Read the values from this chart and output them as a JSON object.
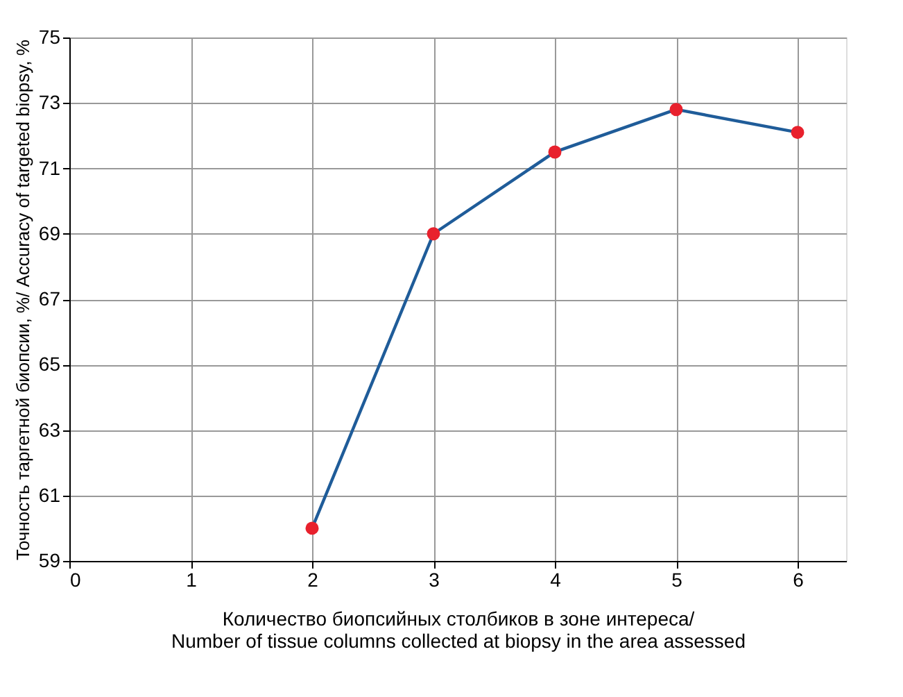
{
  "chart_data": {
    "type": "line",
    "xlabel": "Количество биопсийных столбиков в зоне интереса/ Number of tissue columns collected at biopsy in the area assessed",
    "ylabel": "Точность таргетной биопсии, %/ Accuracy of targeted biopsy, %",
    "x": [
      2,
      3,
      4,
      5,
      6
    ],
    "series": [
      {
        "color": "#1f5c99",
        "colors": [
          "#e8212d",
          "#e8212d",
          "#e8212d",
          "#e8212d",
          "#e8212d"
        ],
        "values": [
          60,
          69,
          71.5,
          72.8,
          72.1
        ]
      }
    ],
    "xlim": [
      0,
      6.4
    ],
    "xticks": [
      0,
      1,
      2,
      3,
      4,
      5,
      6
    ],
    "ylim": [
      59,
      75
    ],
    "yticks": [
      59,
      61,
      63,
      65,
      67,
      69,
      71,
      73,
      75
    ],
    "grid": true,
    "marker": "circle",
    "line_style": "solid"
  }
}
